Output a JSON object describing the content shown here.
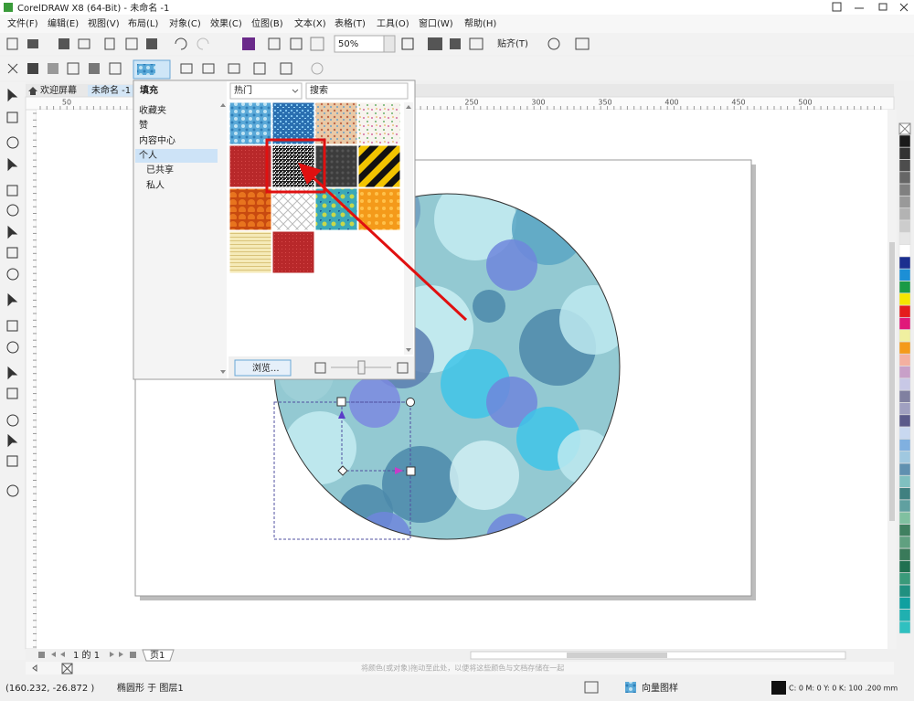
{
  "window": {
    "title": "CorelDRAW X8 (64-Bit) - 未命名 -1"
  },
  "menu": [
    "文件(F)",
    "编辑(E)",
    "视图(V)",
    "布局(L)",
    "对象(C)",
    "效果(C)",
    "位图(B)",
    "文本(X)",
    "表格(T)",
    "工具(O)",
    "窗口(W)",
    "帮助(H)"
  ],
  "toolbar": {
    "zoom": "50%",
    "snap": "贴齐(T)"
  },
  "tabs": [
    "欢迎屏幕",
    "未命名 -1"
  ],
  "ruler": {
    "top_labels": [
      "50",
      "250",
      "300",
      "350",
      "400",
      "450",
      "500"
    ]
  },
  "fill_panel": {
    "title": "填充",
    "categories": [
      "收藏夹",
      "赞",
      "内容中心",
      "个人",
      "已共享",
      "私人"
    ],
    "filter": "热门",
    "search": "搜索",
    "browse": "浏览..."
  },
  "page_nav": {
    "count": "1 的 1",
    "tab": "页1"
  },
  "palette_hint": "将颜色(或对象)拖动至此处，以便将这些颜色与文档存储在一起",
  "status": {
    "coords": "(160.232, -26.872 )",
    "object": "椭圆形 于 图层1",
    "fill": "向量图样",
    "outline": "C: 0 M: 0 Y: 0 K: 100  .200 mm"
  }
}
